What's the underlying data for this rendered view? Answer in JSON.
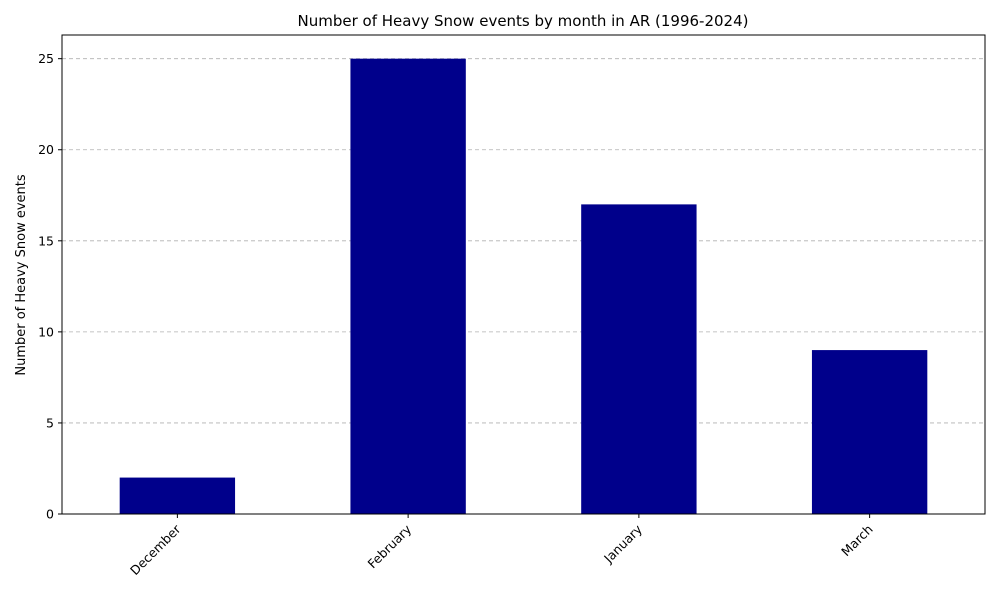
{
  "chart_data": {
    "type": "bar",
    "title": "Number of Heavy Snow events by month in AR (1996-2024)",
    "xlabel": "",
    "ylabel": "Number of Heavy Snow events",
    "categories": [
      "December",
      "February",
      "January",
      "March"
    ],
    "values": [
      2,
      25,
      17,
      9
    ],
    "ylim": [
      0,
      26.3
    ],
    "yticks": [
      0,
      5,
      10,
      15,
      20,
      25
    ],
    "grid": "y-dashed",
    "bar_color": "#00008b",
    "xtick_rotation": 45
  }
}
